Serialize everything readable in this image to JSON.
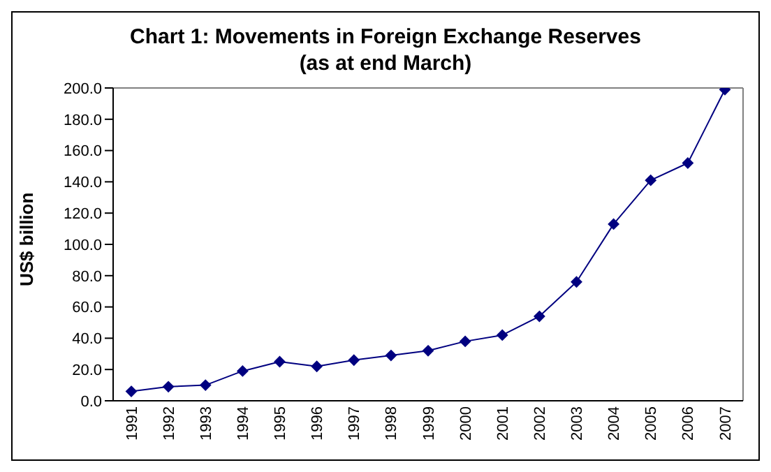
{
  "chart_data": {
    "type": "line",
    "title": "Chart 1: Movements in Foreign Exchange Reserves",
    "subtitle": "(as at end March)",
    "ylabel": "US$ billion",
    "categories": [
      "1991",
      "1992",
      "1993",
      "1994",
      "1995",
      "1996",
      "1997",
      "1998",
      "1999",
      "2000",
      "2001",
      "2002",
      "2003",
      "2004",
      "2005",
      "2006",
      "2007"
    ],
    "series": [
      {
        "color": "#000080",
        "values": [
          6,
          9,
          10,
          19,
          25,
          22,
          26,
          29,
          32,
          38,
          42,
          54,
          76,
          113,
          141,
          152,
          199
        ]
      }
    ],
    "ylim": [
      0,
      200
    ],
    "yticks": [
      {
        "value": 0,
        "label": "0.0"
      },
      {
        "value": 20,
        "label": "20.0"
      },
      {
        "value": 40,
        "label": "40.0"
      },
      {
        "value": 60,
        "label": "60.0"
      },
      {
        "value": 80,
        "label": "80.0"
      },
      {
        "value": 100,
        "label": "100.0"
      },
      {
        "value": 120,
        "label": "120.0"
      },
      {
        "value": 140,
        "label": "140.0"
      },
      {
        "value": 160,
        "label": "160.0"
      },
      {
        "value": 180,
        "label": "180.0"
      },
      {
        "value": 200,
        "label": "200.0"
      }
    ],
    "grid": false,
    "legend": false,
    "marker": "diamond",
    "line_style": "solid"
  }
}
